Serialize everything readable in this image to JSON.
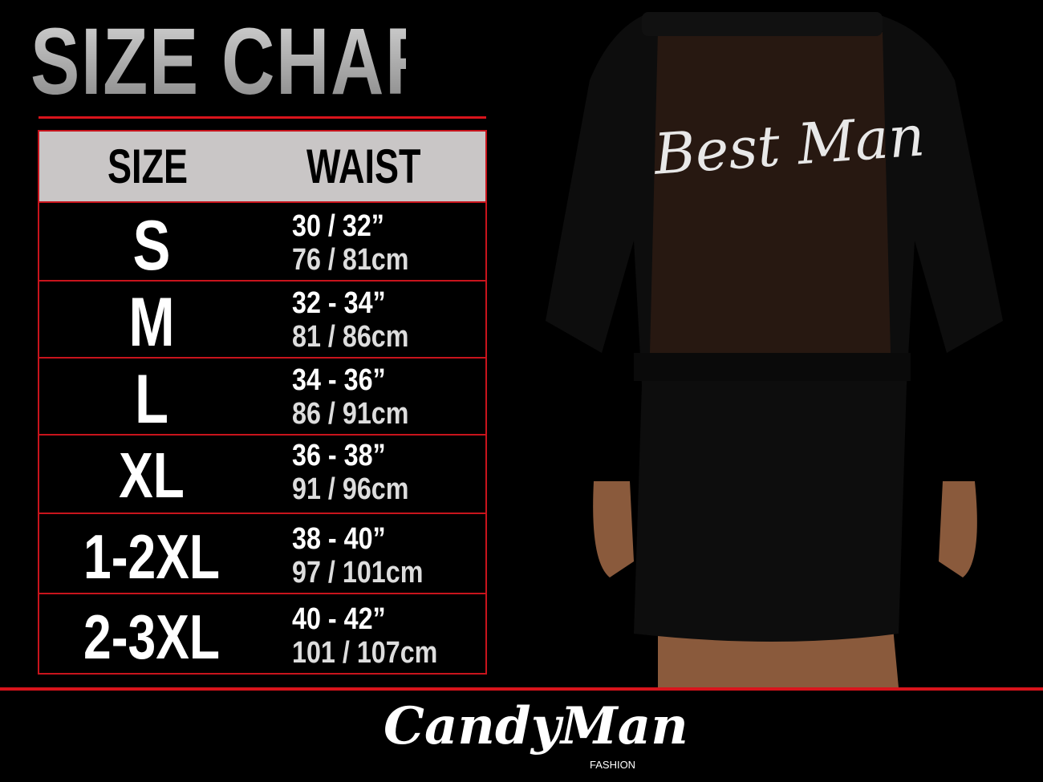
{
  "title": "SIZE CHART",
  "table": {
    "headers": [
      "SIZE",
      "WAIST"
    ],
    "rows": [
      {
        "size": "S",
        "inches": "30 / 32”",
        "cm": "76 / 81cm"
      },
      {
        "size": "M",
        "inches": "32 - 34”",
        "cm": "81 / 86cm"
      },
      {
        "size": "L",
        "inches": "34 - 36”",
        "cm": "86 / 91cm"
      },
      {
        "size": "XL",
        "inches": "36 - 38”",
        "cm": "91 / 96cm"
      },
      {
        "size": "1-2XL",
        "inches": "38 - 40”",
        "cm": "97 / 101cm"
      },
      {
        "size": "2-3XL",
        "inches": "40 - 42”",
        "cm": "101 / 107cm"
      }
    ]
  },
  "product": {
    "print_text": "Best Man"
  },
  "brand": {
    "name": "CandyMan",
    "sub": "FASHION"
  },
  "colors": {
    "accent": "#d8141c",
    "header_bg": "#c9c6c6",
    "background": "#000000"
  }
}
